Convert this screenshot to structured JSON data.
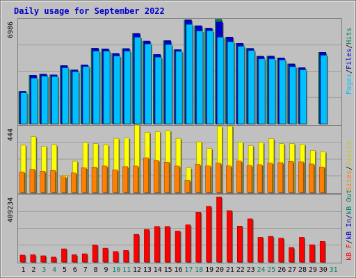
{
  "title": "Daily usage for September 2022",
  "colors": {
    "background": "#c0c0c0",
    "title": "#0000cc",
    "hits": "#00805c",
    "files": "#0000cc",
    "pages": "#00c0ff",
    "visits": "#ffff00",
    "sites": "#ff8000",
    "kb_in": "#0000cc",
    "kb_out": "#00805c",
    "kb_f": "#ff0000",
    "kb_bar": "#ff0000",
    "weekend_tick": "#00805c",
    "weekday_tick": "#000000"
  },
  "legend": {
    "top": [
      {
        "label": "Pages",
        "color": "#00c0ff"
      },
      {
        "label": "/",
        "color": "#000000"
      },
      {
        "label": "Files",
        "color": "#0000cc"
      },
      {
        "label": "/",
        "color": "#000000"
      },
      {
        "label": "Hits",
        "color": "#00805c"
      }
    ],
    "middle": [
      {
        "label": "Sites",
        "color": "#ff8000"
      },
      {
        "label": "/",
        "color": "#000000"
      },
      {
        "label": "Visits",
        "color": "#c8c800"
      }
    ],
    "bottom": [
      {
        "label": "kB F",
        "color": "#ff0000"
      },
      {
        "label": "/",
        "color": "#000000"
      },
      {
        "label": "kB In",
        "color": "#0000cc"
      },
      {
        "label": "/",
        "color": "#000000"
      },
      {
        "label": "kB Out",
        "color": "#00805c"
      }
    ]
  },
  "chart_data": [
    {
      "type": "bar",
      "panel": "hits-files-pages",
      "y_tick_label": "6986",
      "ylim": [
        0,
        6986
      ],
      "categories": [
        "1",
        "2",
        "3",
        "4",
        "5",
        "6",
        "7",
        "8",
        "9",
        "10",
        "11",
        "12",
        "13",
        "14",
        "15",
        "16",
        "17",
        "18",
        "19",
        "20",
        "21",
        "22",
        "23",
        "24",
        "25",
        "26",
        "27",
        "28",
        "29",
        "30",
        "31"
      ],
      "weekend_days": [
        "3",
        "4",
        "10",
        "11",
        "17",
        "18",
        "24",
        "25",
        "31"
      ],
      "series": [
        {
          "name": "Hits",
          "values": [
            2150,
            3225,
            3300,
            3250,
            3870,
            3580,
            3915,
            5020,
            4980,
            4680,
            5000,
            6005,
            5500,
            4610,
            5530,
            4930,
            6910,
            6520,
            6360,
            6960,
            5770,
            5350,
            5010,
            4490,
            4500,
            4380,
            3980,
            3730,
            null,
            4750,
            null
          ]
        },
        {
          "name": "Files",
          "values": [
            2150,
            3225,
            3300,
            3250,
            3870,
            3580,
            3915,
            5020,
            4980,
            4680,
            5000,
            6005,
            5500,
            4610,
            5530,
            4930,
            6910,
            6520,
            6360,
            6780,
            5770,
            5350,
            5010,
            4490,
            4500,
            4380,
            3980,
            3730,
            null,
            4750,
            null
          ]
        },
        {
          "name": "Pages",
          "values": [
            2050,
            3030,
            3160,
            3140,
            3720,
            3460,
            3800,
            4830,
            4830,
            4500,
            4830,
            5750,
            5300,
            4420,
            5260,
            4810,
            6600,
            6170,
            6180,
            5750,
            5450,
            5150,
            4870,
            4310,
            4310,
            4240,
            3790,
            3580,
            null,
            4550,
            null
          ]
        }
      ]
    },
    {
      "type": "bar",
      "panel": "visits-sites",
      "y_tick_label": "444",
      "ylim": [
        0,
        444
      ],
      "categories": [
        "1",
        "2",
        "3",
        "4",
        "5",
        "6",
        "7",
        "8",
        "9",
        "10",
        "11",
        "12",
        "13",
        "14",
        "15",
        "16",
        "17",
        "18",
        "19",
        "20",
        "21",
        "22",
        "23",
        "24",
        "25",
        "26",
        "27",
        "28",
        "29",
        "30",
        "31"
      ],
      "series": [
        {
          "name": "Visits",
          "values": [
            315,
            372,
            308,
            317,
            114,
            208,
            332,
            325,
            318,
            360,
            363,
            448,
            400,
            405,
            412,
            360,
            164,
            337,
            293,
            440,
            442,
            335,
            312,
            333,
            358,
            325,
            325,
            320,
            280,
            272,
            null
          ]
        },
        {
          "name": "Sites",
          "values": [
            137,
            154,
            142,
            147,
            105,
            130,
            164,
            169,
            176,
            151,
            172,
            176,
            231,
            214,
            202,
            176,
            81,
            187,
            177,
            195,
            177,
            209,
            180,
            185,
            196,
            199,
            207,
            204,
            190,
            170,
            null
          ]
        }
      ]
    },
    {
      "type": "bar",
      "panel": "kbytes",
      "y_tick_label": "409234",
      "ylim": [
        0,
        409234
      ],
      "categories": [
        "1",
        "2",
        "3",
        "4",
        "5",
        "6",
        "7",
        "8",
        "9",
        "10",
        "11",
        "12",
        "13",
        "14",
        "15",
        "16",
        "17",
        "18",
        "19",
        "20",
        "21",
        "22",
        "23",
        "24",
        "25",
        "26",
        "27",
        "28",
        "29",
        "30",
        "31"
      ],
      "series": [
        {
          "name": "kB F",
          "values": [
            42000,
            44000,
            38000,
            30000,
            80000,
            44000,
            50000,
            104000,
            84000,
            64000,
            70000,
            168000,
            198000,
            216000,
            216000,
            188000,
            226000,
            302000,
            338000,
            395000,
            312000,
            218000,
            262000,
            150000,
            156000,
            145000,
            88000,
            150000,
            105000,
            125000,
            null
          ]
        }
      ]
    }
  ]
}
